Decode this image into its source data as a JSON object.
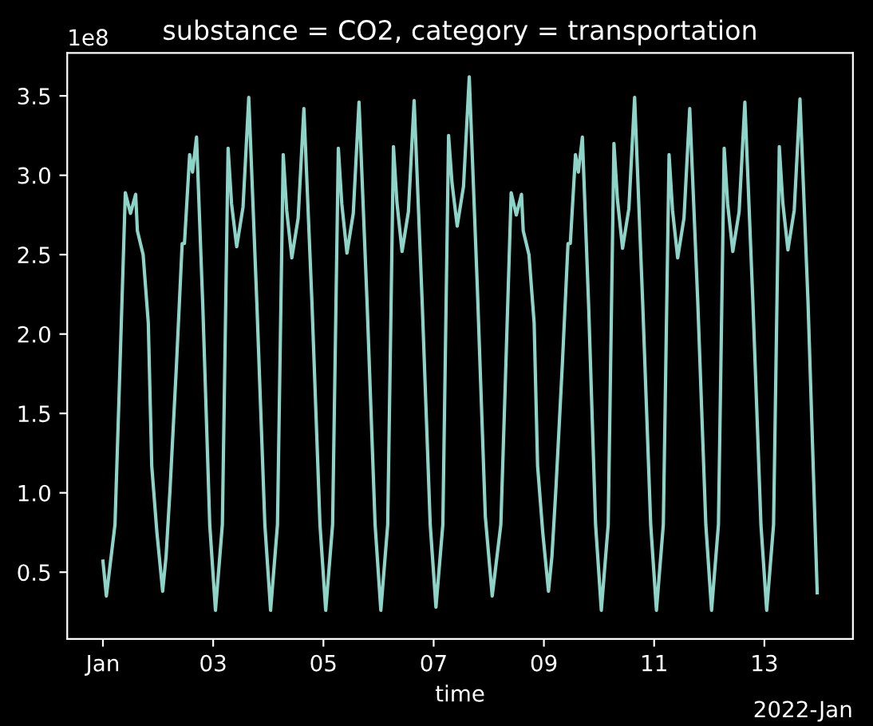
{
  "chart_data": {
    "type": "line",
    "title": "substance = CO2, category = transportation",
    "xlabel": "time",
    "annotations": [
      "1e8",
      "2022-Jan"
    ],
    "x": [
      "2022-01-01T00:00",
      "2022-01-01T01:30",
      "2022-01-01T05:15",
      "2022-01-01T07:00",
      "2022-01-01T09:45",
      "2022-01-01T12:00",
      "2022-01-01T14:15",
      "2022-01-01T15:00",
      "2022-01-01T17:30",
      "2022-01-01T19:45",
      "2022-01-01T21:15",
      "2022-01-01T23:30",
      "2022-01-02T02:00",
      "2022-01-02T03:30",
      "2022-01-02T05:15",
      "2022-01-02T08:00",
      "2022-01-02T10:30",
      "2022-01-02T11:30",
      "2022-01-02T13:45",
      "2022-01-02T15:00",
      "2022-01-02T16:45",
      "2022-01-02T19:30",
      "2022-01-02T22:30",
      "2022-01-03T01:00",
      "2022-01-03T04:00",
      "2022-01-03T06:30",
      "2022-01-03T08:00",
      "2022-01-03T10:15",
      "2022-01-03T13:00",
      "2022-01-03T15:30",
      "2022-01-03T19:00",
      "2022-01-03T22:30",
      "2022-01-04T01:00",
      "2022-01-04T04:00",
      "2022-01-04T06:30",
      "2022-01-04T08:00",
      "2022-01-04T10:15",
      "2022-01-04T13:00",
      "2022-01-04T15:30",
      "2022-01-04T19:00",
      "2022-01-04T22:30",
      "2022-01-05T01:00",
      "2022-01-05T04:00",
      "2022-01-05T06:30",
      "2022-01-05T08:00",
      "2022-01-05T10:15",
      "2022-01-05T13:00",
      "2022-01-05T15:30",
      "2022-01-05T19:00",
      "2022-01-05T22:30",
      "2022-01-06T01:00",
      "2022-01-06T04:00",
      "2022-01-06T06:30",
      "2022-01-06T08:00",
      "2022-01-06T10:15",
      "2022-01-06T13:00",
      "2022-01-06T15:30",
      "2022-01-06T19:00",
      "2022-01-06T22:30",
      "2022-01-07T01:00",
      "2022-01-07T04:00",
      "2022-01-07T06:30",
      "2022-01-07T08:00",
      "2022-01-07T10:15",
      "2022-01-07T13:00",
      "2022-01-07T15:30",
      "2022-01-07T19:00",
      "2022-01-07T22:30",
      "2022-01-08T01:30",
      "2022-01-08T05:15",
      "2022-01-08T07:00",
      "2022-01-08T09:45",
      "2022-01-08T12:00",
      "2022-01-08T14:15",
      "2022-01-08T15:00",
      "2022-01-08T17:30",
      "2022-01-08T19:45",
      "2022-01-08T21:15",
      "2022-01-08T23:30",
      "2022-01-09T02:00",
      "2022-01-09T03:30",
      "2022-01-09T05:15",
      "2022-01-09T08:00",
      "2022-01-09T10:30",
      "2022-01-09T11:30",
      "2022-01-09T13:45",
      "2022-01-09T15:00",
      "2022-01-09T16:45",
      "2022-01-09T19:30",
      "2022-01-09T22:30",
      "2022-01-10T01:00",
      "2022-01-10T04:00",
      "2022-01-10T06:30",
      "2022-01-10T08:00",
      "2022-01-10T10:15",
      "2022-01-10T13:00",
      "2022-01-10T15:30",
      "2022-01-10T19:00",
      "2022-01-10T22:30",
      "2022-01-11T01:00",
      "2022-01-11T04:00",
      "2022-01-11T06:30",
      "2022-01-11T08:00",
      "2022-01-11T10:15",
      "2022-01-11T13:00",
      "2022-01-11T15:30",
      "2022-01-11T19:00",
      "2022-01-11T22:30",
      "2022-01-12T01:00",
      "2022-01-12T04:00",
      "2022-01-12T06:30",
      "2022-01-12T08:00",
      "2022-01-12T10:15",
      "2022-01-12T13:00",
      "2022-01-12T15:30",
      "2022-01-12T19:00",
      "2022-01-12T22:30",
      "2022-01-13T01:00",
      "2022-01-13T04:00",
      "2022-01-13T06:30",
      "2022-01-13T08:00",
      "2022-01-13T10:15",
      "2022-01-13T13:00",
      "2022-01-13T15:30",
      "2022-01-13T19:00",
      "2022-01-13T23:00"
    ],
    "series": [
      {
        "color": "#8dd3c7",
        "values": [
          0.57,
          0.35,
          0.8,
          1.6,
          2.89,
          2.76,
          2.88,
          2.65,
          2.5,
          2.07,
          1.17,
          0.75,
          0.38,
          0.6,
          1.03,
          1.8,
          2.57,
          2.57,
          3.13,
          3.02,
          3.24,
          2.17,
          0.8,
          0.26,
          0.8,
          3.17,
          2.82,
          2.55,
          2.8,
          3.49,
          2.2,
          0.8,
          0.26,
          0.8,
          3.13,
          2.78,
          2.48,
          2.73,
          3.42,
          2.2,
          0.8,
          0.26,
          0.8,
          3.17,
          2.82,
          2.51,
          2.76,
          3.46,
          2.2,
          0.8,
          0.26,
          0.8,
          3.18,
          2.83,
          2.52,
          2.77,
          3.47,
          2.2,
          0.8,
          0.28,
          0.8,
          3.25,
          2.95,
          2.68,
          2.93,
          3.62,
          2.3,
          0.85,
          0.35,
          0.8,
          1.6,
          2.89,
          2.75,
          2.88,
          2.65,
          2.5,
          2.07,
          1.17,
          0.75,
          0.38,
          0.6,
          1.03,
          1.8,
          2.57,
          2.57,
          3.13,
          3.02,
          3.24,
          2.17,
          0.8,
          0.26,
          0.8,
          3.2,
          2.85,
          2.54,
          2.79,
          3.49,
          2.2,
          0.8,
          0.26,
          0.8,
          3.13,
          2.78,
          2.48,
          2.73,
          3.42,
          2.2,
          0.8,
          0.26,
          0.8,
          3.17,
          2.82,
          2.52,
          2.77,
          3.46,
          2.2,
          0.8,
          0.26,
          0.8,
          3.18,
          2.83,
          2.53,
          2.78,
          3.48,
          2.2,
          0.37
        ]
      }
    ],
    "xlim": [
      "2021-12-31T08:27",
      "2022-01-14T14:33"
    ],
    "xticks": [
      {
        "value": "2022-01-01",
        "label": "Jan"
      },
      {
        "value": "2022-01-03",
        "label": "03"
      },
      {
        "value": "2022-01-05",
        "label": "05"
      },
      {
        "value": "2022-01-07",
        "label": "07"
      },
      {
        "value": "2022-01-09",
        "label": "09"
      },
      {
        "value": "2022-01-11",
        "label": "11"
      },
      {
        "value": "2022-01-13",
        "label": "13"
      }
    ],
    "ylim": [
      0.08,
      3.77
    ],
    "yticks": [
      0.5,
      {
        "value": 1,
        "label": "1.0"
      },
      1.5,
      {
        "value": 2,
        "label": "2.0"
      },
      2.5,
      {
        "value": 3,
        "label": "3.0"
      },
      3.5
    ],
    "grid": false,
    "legend": false,
    "marker": "none",
    "line_style": "solid"
  }
}
